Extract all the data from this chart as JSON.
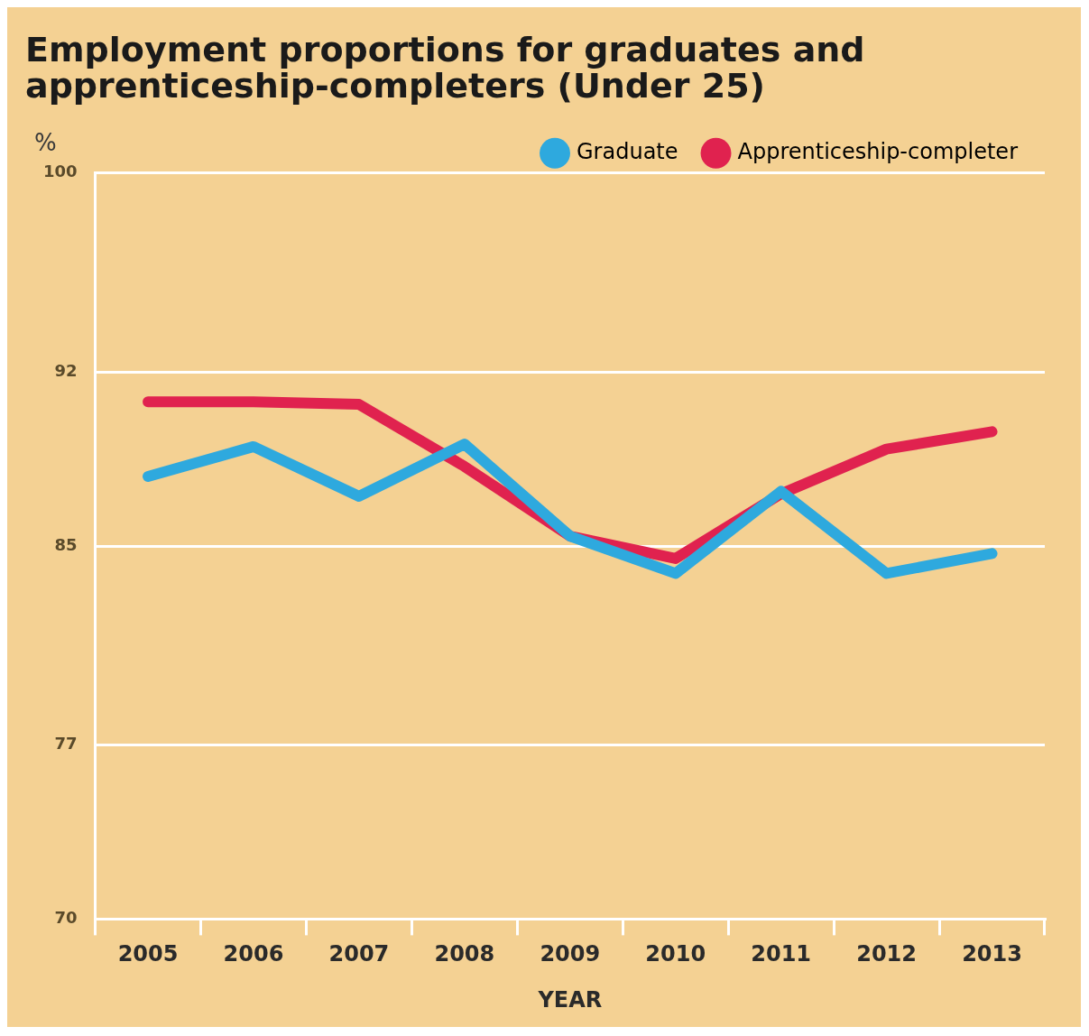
{
  "chart_data": {
    "type": "line",
    "title": [
      "Employment proportions for graduates and",
      "apprenticeship-completers (Under 25)"
    ],
    "ylabel": "%",
    "xlabel": "YEAR",
    "categories": [
      "2005",
      "2006",
      "2007",
      "2008",
      "2009",
      "2010",
      "2011",
      "2012",
      "2013"
    ],
    "series": [
      {
        "name": "Graduate",
        "color": "#2ea9de",
        "values": [
          87.8,
          89.0,
          87.0,
          89.1,
          85.4,
          83.9,
          87.2,
          83.9,
          84.7
        ]
      },
      {
        "name": "Apprenticeship-completer",
        "color": "#e0224f",
        "values": [
          90.8,
          90.8,
          90.7,
          88.2,
          85.4,
          84.5,
          87.1,
          88.9,
          89.6
        ]
      }
    ],
    "ylim": [
      70,
      100
    ],
    "yticks": [
      70,
      77,
      85,
      92,
      100
    ],
    "grid": "y",
    "legend": "top right",
    "marker": "none",
    "line_style": "solid"
  }
}
